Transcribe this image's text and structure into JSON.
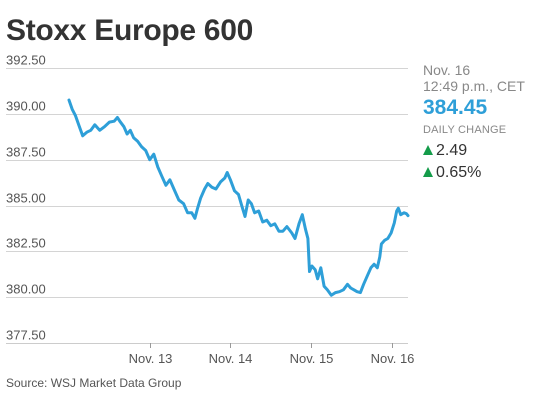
{
  "title": "Stoxx Europe 600",
  "quote": {
    "date": "Nov. 16",
    "time": "12:49 p.m., CET",
    "price": "384.45",
    "daily_change_label": "DAILY CHANGE",
    "change_points": "2.49",
    "change_percent": "0.65%"
  },
  "source": "Source: WSJ Market Data Group",
  "colors": {
    "line": "#2e9fd8",
    "price": "#2e9fd8",
    "up_arrow": "#149c4a",
    "gridline": "#d4d4d4",
    "zero_line": "#cccccc",
    "text": "#333333",
    "muted_text": "#888888"
  },
  "icons": {
    "up_arrow": "triangle-up-icon"
  },
  "chart_data": {
    "type": "line",
    "title": "Stoxx Europe 600",
    "ylim": [
      377.5,
      392.5
    ],
    "yticks": [
      392.5,
      390,
      387.5,
      385,
      382.5,
      380,
      377.5
    ],
    "ytick_labels": [
      "392.50",
      "390.00",
      "387.50",
      "385.00",
      "382.50",
      "380.00",
      "377.50"
    ],
    "xlim": [
      0,
      4.2
    ],
    "xticks": [
      1,
      2,
      3,
      4
    ],
    "xtick_labels": [
      "Nov. 13",
      "Nov. 14",
      "Nov. 15",
      "Nov. 16"
    ],
    "grid": true,
    "series": [
      {
        "values": [
          [
            0.0,
            390.75
          ],
          [
            0.04,
            390.25
          ],
          [
            0.08,
            389.9
          ],
          [
            0.12,
            389.4
          ],
          [
            0.17,
            388.8
          ],
          [
            0.22,
            389.0
          ],
          [
            0.27,
            389.1
          ],
          [
            0.32,
            389.4
          ],
          [
            0.38,
            389.1
          ],
          [
            0.44,
            389.3
          ],
          [
            0.5,
            389.55
          ],
          [
            0.56,
            389.6
          ],
          [
            0.6,
            389.8
          ],
          [
            0.63,
            389.6
          ],
          [
            0.68,
            389.3
          ],
          [
            0.72,
            388.9
          ],
          [
            0.76,
            389.1
          ],
          [
            0.8,
            388.7
          ],
          [
            0.85,
            388.5
          ],
          [
            0.9,
            388.2
          ],
          [
            0.95,
            388.0
          ],
          [
            1.0,
            387.5
          ],
          [
            1.05,
            387.8
          ],
          [
            1.1,
            387.1
          ],
          [
            1.15,
            386.6
          ],
          [
            1.2,
            386.1
          ],
          [
            1.25,
            386.4
          ],
          [
            1.3,
            385.9
          ],
          [
            1.36,
            385.3
          ],
          [
            1.42,
            385.1
          ],
          [
            1.47,
            384.6
          ],
          [
            1.52,
            384.6
          ],
          [
            1.56,
            384.3
          ],
          [
            1.59,
            384.8
          ],
          [
            1.63,
            385.4
          ],
          [
            1.68,
            385.9
          ],
          [
            1.72,
            386.2
          ],
          [
            1.77,
            386.0
          ],
          [
            1.82,
            385.9
          ],
          [
            1.88,
            386.3
          ],
          [
            1.93,
            386.5
          ],
          [
            1.96,
            386.8
          ],
          [
            2.0,
            386.4
          ],
          [
            2.05,
            385.8
          ],
          [
            2.1,
            385.6
          ],
          [
            2.14,
            385.0
          ],
          [
            2.18,
            384.4
          ],
          [
            2.22,
            385.3
          ],
          [
            2.26,
            385.1
          ],
          [
            2.3,
            384.6
          ],
          [
            2.35,
            384.7
          ],
          [
            2.4,
            384.1
          ],
          [
            2.45,
            384.2
          ],
          [
            2.5,
            383.9
          ],
          [
            2.55,
            384.0
          ],
          [
            2.6,
            383.6
          ],
          [
            2.65,
            383.6
          ],
          [
            2.7,
            383.85
          ],
          [
            2.76,
            383.5
          ],
          [
            2.8,
            383.2
          ],
          [
            2.85,
            384.0
          ],
          [
            2.89,
            384.5
          ],
          [
            2.93,
            383.7
          ],
          [
            2.96,
            383.2
          ],
          [
            2.98,
            381.4
          ],
          [
            3.01,
            381.7
          ],
          [
            3.05,
            381.5
          ],
          [
            3.08,
            381.0
          ],
          [
            3.12,
            381.6
          ],
          [
            3.16,
            380.6
          ],
          [
            3.2,
            380.4
          ],
          [
            3.25,
            380.1
          ],
          [
            3.3,
            380.25
          ],
          [
            3.35,
            380.3
          ],
          [
            3.4,
            380.4
          ],
          [
            3.45,
            380.7
          ],
          [
            3.49,
            380.5
          ],
          [
            3.53,
            380.4
          ],
          [
            3.57,
            380.3
          ],
          [
            3.61,
            380.25
          ],
          [
            3.65,
            380.7
          ],
          [
            3.7,
            381.2
          ],
          [
            3.74,
            381.6
          ],
          [
            3.78,
            381.8
          ],
          [
            3.82,
            381.6
          ],
          [
            3.85,
            382.2
          ],
          [
            3.87,
            382.9
          ],
          [
            3.91,
            383.1
          ],
          [
            3.95,
            383.2
          ],
          [
            3.99,
            383.5
          ],
          [
            4.03,
            384.05
          ],
          [
            4.06,
            384.7
          ],
          [
            4.08,
            384.85
          ],
          [
            4.11,
            384.5
          ],
          [
            4.15,
            384.6
          ],
          [
            4.18,
            384.55
          ],
          [
            4.2,
            384.45
          ]
        ]
      }
    ]
  }
}
